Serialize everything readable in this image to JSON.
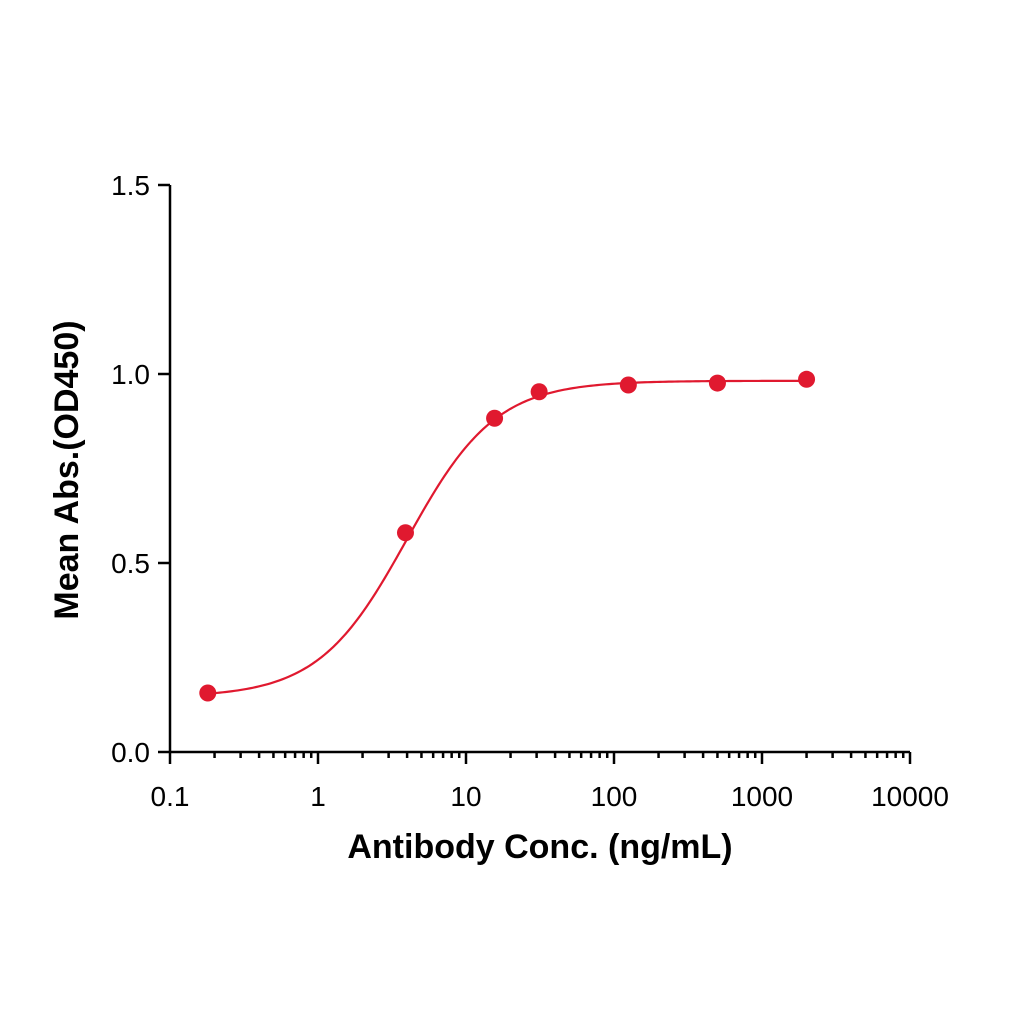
{
  "chart_data": {
    "type": "scatter",
    "title": "",
    "xlabel": "Antibody Conc. (ng/mL)",
    "ylabel": "Mean Abs.(OD450)",
    "x_scale": "log",
    "xlim": [
      0.1,
      10000
    ],
    "ylim": [
      0,
      1.5
    ],
    "x_ticks": [
      0.1,
      1,
      10,
      100,
      1000,
      10000
    ],
    "x_tick_labels": [
      "0.1",
      "1",
      "10",
      "100",
      "1000",
      "10000"
    ],
    "y_ticks": [
      0,
      0.5,
      1.0,
      1.5
    ],
    "y_tick_labels": [
      "0.0",
      "0.5",
      "1.0",
      "1.5"
    ],
    "grid": false,
    "legend": "none",
    "series": [
      {
        "color": "#e0192f",
        "fit": "4PL",
        "points": [
          {
            "x": 0.18,
            "y": 0.156
          },
          {
            "x": 3.9,
            "y": 0.58
          },
          {
            "x": 15.6,
            "y": 0.883
          },
          {
            "x": 31.2,
            "y": 0.953
          },
          {
            "x": 125,
            "y": 0.971
          },
          {
            "x": 500,
            "y": 0.976
          },
          {
            "x": 2000,
            "y": 0.986
          }
        ],
        "fit_params": {
          "bottom": 0.145,
          "top": 0.982,
          "ec50": 4.0,
          "hill": 1.45
        }
      }
    ]
  }
}
